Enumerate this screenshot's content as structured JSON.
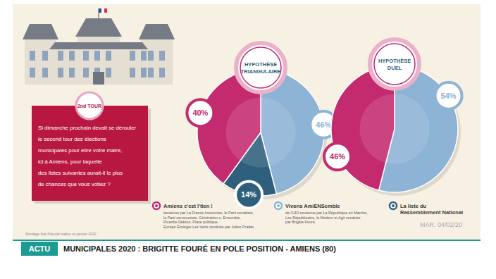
{
  "chart_data": [
    {
      "type": "pie",
      "title": "HYPOTHÈSE TRIANGULAIRE",
      "values": [
        46,
        14,
        40
      ],
      "value_labels": [
        "46%",
        "14%",
        "40%"
      ],
      "colors": [
        "#8db3d5",
        "#2e5f7d",
        "#c42a6e"
      ],
      "data_labels": true
    },
    {
      "type": "pie",
      "title": "HYPOTHÈSE DUEL",
      "values": [
        54,
        46
      ],
      "value_labels": [
        "54%",
        "46%"
      ],
      "colors": [
        "#8db3d5",
        "#c42a6e"
      ],
      "data_labels": true
    }
  ],
  "legend_entries": [
    {
      "name": "Amiens c'est l'tien !",
      "color": "#c42a6e",
      "details": [
        "soutenue par La France Insoumise, le Parti socialiste,",
        "le Parti communiste, Génération.s, Ensemble,",
        "Picardie Debout, Place publique,",
        "Europe Écologie Les Verts conduite par Julien Pradat."
      ]
    },
    {
      "name": "Vivons AmiENSemble",
      "color": "#8db3d5",
      "details": [
        "de l'UDI soutenue par La République en Marche,",
        "Les Républicains, le Modem et Agir conduite",
        "par Brigitte Fouré"
      ]
    },
    {
      "name": "La liste du\nRassemblement National",
      "color": "#2e5f7d",
      "details": []
    }
  ],
  "question": {
    "badge": "2nd TOUR",
    "lines": [
      "Si dimanche prochain devait se dérouler",
      "le second tour des élections",
      "municipales pour élire votre maire,",
      "ici à Amiens, pour laquelle",
      "des listes suivantes aurait-il le plus",
      "de chances que vous votiez ?"
    ]
  },
  "source": "Sondage Ifop-Fiducial réalisé en janvier 2020",
  "date": "MAR. 04/02/20",
  "banner": {
    "tag": "ACTU",
    "title": "MUNICIPALES 2020 : BRIGITTE FOURÉ EN POLE POSITION - AMIENS (80)"
  }
}
